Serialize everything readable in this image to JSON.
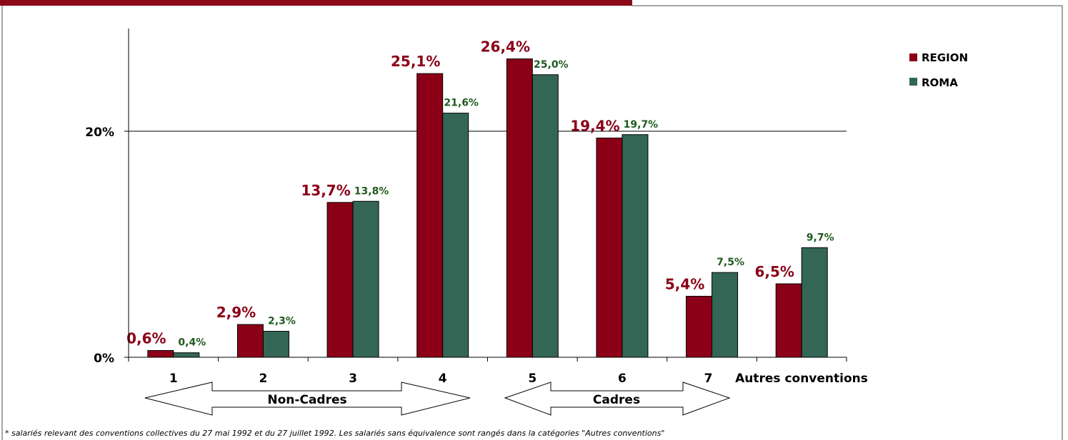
{
  "chart_data": {
    "type": "bar",
    "categories": [
      "1",
      "2",
      "3",
      "4",
      "5",
      "6",
      "7",
      "Autres conventions"
    ],
    "series": [
      {
        "name": "REGION",
        "color": "#8b0016",
        "values": [
          0.6,
          2.9,
          13.7,
          25.1,
          26.4,
          19.4,
          5.4,
          6.5
        ],
        "labels": [
          "0,6%",
          "2,9%",
          "13,7%",
          "25,1%",
          "26,4%",
          "19,4%",
          "5,4%",
          "6,5%"
        ]
      },
      {
        "name": "ROMA",
        "color": "#336655",
        "values": [
          0.4,
          2.3,
          13.8,
          21.6,
          25.0,
          19.7,
          7.5,
          9.7
        ],
        "labels": [
          "0,4%",
          "2,3%",
          "13,8%",
          "21,6%",
          "25,0%",
          "19,7%",
          "7,5%",
          "9,7%"
        ]
      }
    ],
    "yticks": [
      {
        "value": 0,
        "label": "0%"
      },
      {
        "value": 20,
        "label": "20%"
      }
    ],
    "ylim": [
      0,
      29
    ],
    "grid": true,
    "legend_position": "top-right"
  },
  "arrows": [
    {
      "label": "Non-Cadres"
    },
    {
      "label": "Cadres"
    }
  ],
  "footnote": "* salariés relevant des conventions collectives du 27 mai 1992 et du 27 juillet 1992. Les salariés sans équivalence sont rangés dans la catégories \"Autres conventions\""
}
